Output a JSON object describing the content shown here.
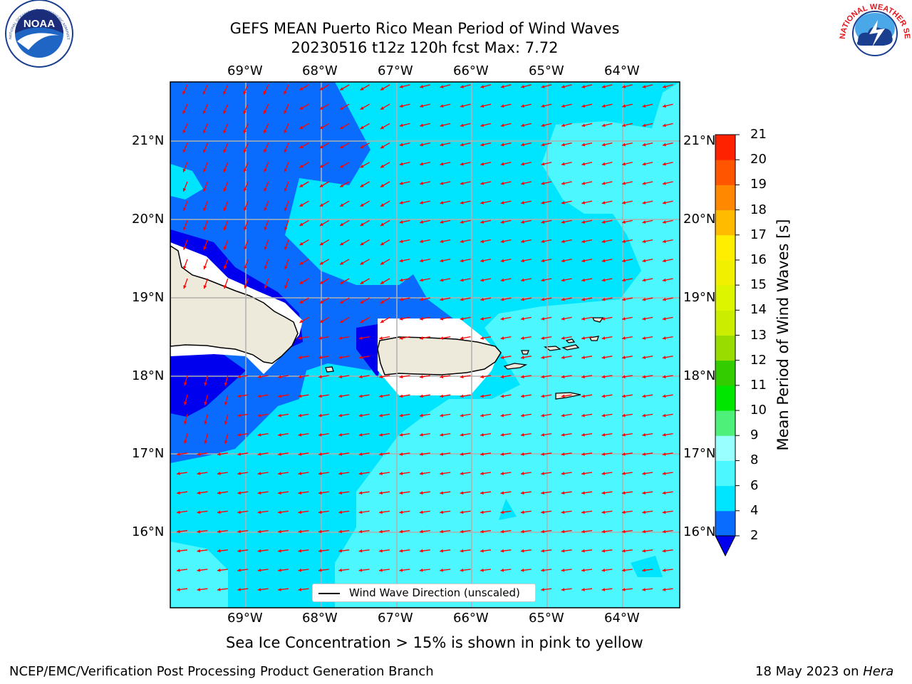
{
  "header": {
    "title_line1": "GEFS MEAN Puerto Rico Mean Period of Wind Waves",
    "title_line2": "20230516 t12z 120h fcst   Max: 7.72"
  },
  "map": {
    "lon_labels": [
      "69°W",
      "68°W",
      "67°W",
      "66°W",
      "65°W",
      "64°W"
    ],
    "lat_labels": [
      "21°N",
      "20°N",
      "19°N",
      "18°N",
      "17°N",
      "16°N"
    ],
    "extent": {
      "lon": [
        -69.99,
        -63.25
      ],
      "lat": [
        15.05,
        21.75
      ]
    },
    "wind_wave_direction": "mostly from the east; from the north-northeast north of Hispaniola",
    "legend_label": "Wind Wave Direction (unscaled)",
    "arrow_color": "#ff0000"
  },
  "colorbar": {
    "label": "Mean Period of Wind Waves [s]",
    "ticks": [
      "2",
      "4",
      "6",
      "8",
      "9",
      "10",
      "11",
      "12",
      "13",
      "14",
      "15",
      "16",
      "17",
      "18",
      "19",
      "20",
      "21"
    ],
    "colors": [
      "#0a6cff",
      "#00e5ff",
      "#4cf7ff",
      "#99ffff",
      "#4ef07a",
      "#00e600",
      "#33cc00",
      "#99dd00",
      "#cbee00",
      "#ddf600",
      "#f0f000",
      "#ffee00",
      "#ffbb00",
      "#ff8800",
      "#ff5500",
      "#ff2200",
      "#ff0000"
    ],
    "under_color": "#0000ee"
  },
  "footer": {
    "ice_note": "Sea Ice Concentration > 15% is shown in pink to yellow",
    "branch": "NCEP/EMC/Verification Post Processing Product Generation Branch",
    "date": "18 May 2023 on ",
    "machine": "Hera"
  },
  "logos": {
    "left": "NOAA",
    "left_ring": "NATIONAL OCEANIC AND ATMOSPHERIC ADMINISTRATION · U.S. DEPARTMENT OF COMMERCE",
    "right_ring": "NATIONAL WEATHER SERVICE"
  }
}
